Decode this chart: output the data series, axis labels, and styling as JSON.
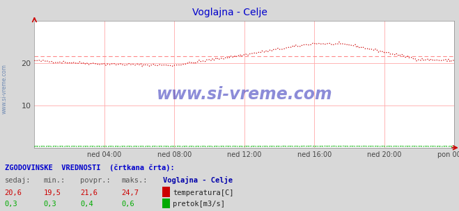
{
  "title": "Voglajna - Celje",
  "title_color": "#0000cc",
  "bg_color": "#d8d8d8",
  "plot_bg_color": "#ffffff",
  "grid_color": "#ffaaaa",
  "watermark_text": "www.si-vreme.com",
  "watermark_color": "#0000aa",
  "ylim": [
    0,
    30
  ],
  "yticks": [
    10,
    20
  ],
  "xlim": [
    0,
    288
  ],
  "xtick_labels": [
    "ned 04:00",
    "ned 08:00",
    "ned 12:00",
    "ned 16:00",
    "ned 20:00",
    "pon 00:00"
  ],
  "xtick_positions": [
    48,
    96,
    144,
    192,
    240,
    288
  ],
  "temp_color": "#cc0000",
  "flow_color": "#00aa00",
  "dashed_temp_color": "#ff8888",
  "dashed_flow_color": "#88dd88",
  "avg_temp": 21.6,
  "avg_flow": 0.4,
  "footer_text1": "ZGODOVINSKE  VREDNOSTI  (črtkana črta):",
  "footer_col_headers": [
    "sedaj:",
    "min.:",
    "povpr.:",
    "maks.:"
  ],
  "footer_col_values_temp": [
    "20,6",
    "19,5",
    "21,6",
    "24,7"
  ],
  "footer_col_values_flow": [
    "0,3",
    "0,3",
    "0,4",
    "0,6"
  ],
  "footer_station": "Voglajna - Celje",
  "footer_label_temp": "temperatura[C]",
  "footer_label_flow": "pretok[m3/s]",
  "sidebar_text": "www.si-vreme.com"
}
